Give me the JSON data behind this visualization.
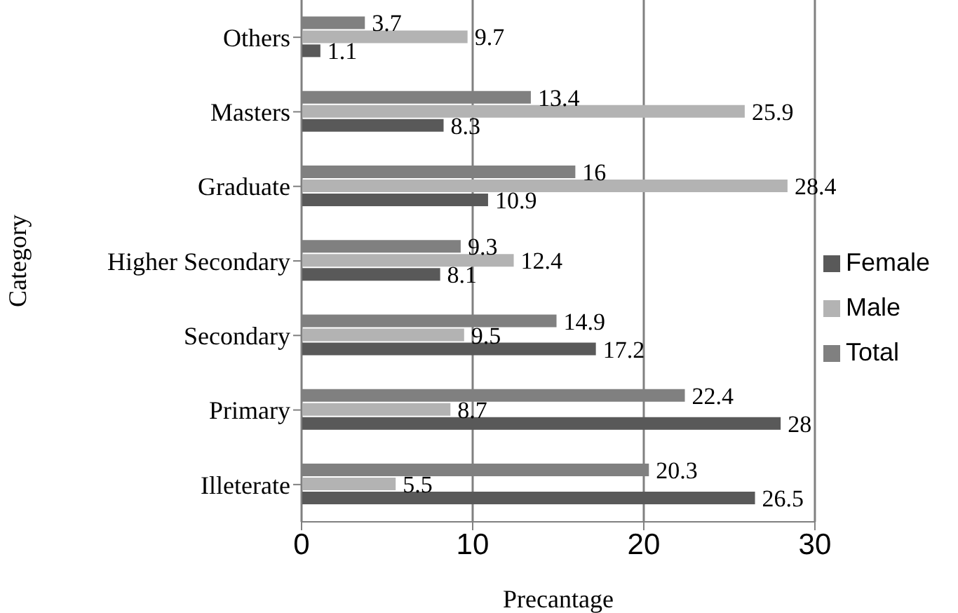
{
  "chart_data": {
    "type": "bar",
    "orientation": "horizontal",
    "xlabel": "Precantage",
    "ylabel": "Category",
    "categories": [
      "Others",
      "Masters",
      "Graduate",
      "Higher Secondary",
      "Secondary",
      "Primary",
      "Illeterate"
    ],
    "series": [
      {
        "name": "Total",
        "color": "#808080",
        "values": [
          3.7,
          13.4,
          16,
          9.3,
          14.9,
          22.4,
          20.3
        ]
      },
      {
        "name": "Male",
        "color": "#b3b3b3",
        "values": [
          9.7,
          25.9,
          28.4,
          12.4,
          9.5,
          8.7,
          5.5
        ]
      },
      {
        "name": "Female",
        "color": "#595959",
        "values": [
          1.1,
          8.3,
          10.9,
          8.1,
          17.2,
          28,
          26.5
        ]
      }
    ],
    "xlim": [
      0,
      30
    ],
    "xticks": [
      0,
      10,
      20,
      30
    ],
    "grid": "x",
    "legend": "right",
    "data_labels": true
  }
}
